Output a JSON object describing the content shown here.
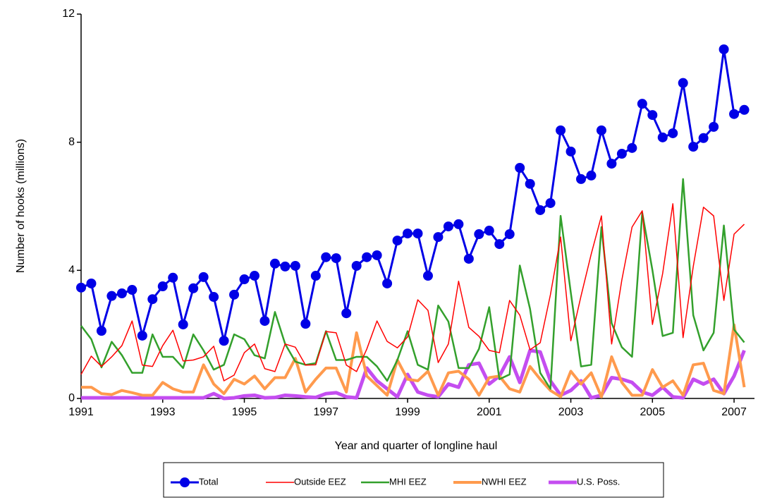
{
  "chart_data": {
    "type": "line",
    "x_label": "Year and quarter of longline haul",
    "y_label": "Number of hooks (millions)",
    "x": [
      1991,
      1991.25,
      1991.5,
      1991.75,
      1992,
      1992.25,
      1992.5,
      1992.75,
      1993,
      1993.25,
      1993.5,
      1993.75,
      1994,
      1994.25,
      1994.5,
      1994.75,
      1995,
      1995.25,
      1995.5,
      1995.75,
      1996,
      1996.25,
      1996.5,
      1996.75,
      1997,
      1997.25,
      1997.5,
      1997.75,
      1998,
      1998.25,
      1998.5,
      1998.75,
      1999,
      1999.25,
      1999.5,
      1999.75,
      2000,
      2000.25,
      2000.5,
      2000.75,
      2001,
      2001.25,
      2001.5,
      2001.75,
      2002,
      2002.25,
      2002.5,
      2002.75,
      2003,
      2003.25,
      2003.5,
      2003.75,
      2004,
      2004.25,
      2004.5,
      2004.75,
      2005,
      2005.25,
      2005.5,
      2005.75,
      2006,
      2006.25,
      2006.5,
      2006.75,
      2007,
      2007.25
    ],
    "xlim": [
      1991,
      2007.5
    ],
    "xticks": [
      1991,
      1993,
      1995,
      1997,
      1999,
      2001,
      2003,
      2005,
      2007
    ],
    "ylim": [
      0,
      12
    ],
    "yticks": [
      0,
      4,
      8,
      12
    ],
    "legend": "bottom",
    "series": [
      {
        "name": "Total",
        "color": "#0000e6",
        "marker": "circle",
        "values": [
          3.46,
          3.59,
          2.11,
          3.2,
          3.28,
          3.39,
          1.96,
          3.1,
          3.5,
          3.77,
          2.31,
          3.44,
          3.79,
          3.17,
          1.8,
          3.24,
          3.72,
          3.83,
          2.42,
          4.21,
          4.12,
          4.14,
          2.33,
          3.83,
          4.41,
          4.38,
          2.66,
          4.14,
          4.41,
          4.47,
          3.59,
          4.93,
          5.15,
          5.15,
          3.83,
          5.04,
          5.37,
          5.44,
          4.36,
          5.13,
          5.24,
          4.82,
          5.13,
          7.2,
          6.7,
          5.88,
          6.1,
          8.37,
          7.71,
          6.85,
          6.96,
          8.37,
          7.33,
          7.64,
          7.82,
          9.2,
          8.85,
          8.15,
          8.28,
          9.85,
          7.86,
          8.13,
          8.48,
          10.9,
          8.88,
          9.01
        ]
      },
      {
        "name": "Outside EEZ",
        "color": "#ff0000",
        "values": [
          0.75,
          1.32,
          1.0,
          1.3,
          1.65,
          2.42,
          1.04,
          1.0,
          1.65,
          2.13,
          1.17,
          1.2,
          1.3,
          1.63,
          0.55,
          0.73,
          1.43,
          1.7,
          0.93,
          0.84,
          1.7,
          1.6,
          1.04,
          1.05,
          2.09,
          2.05,
          1.04,
          0.84,
          1.54,
          2.42,
          1.78,
          1.58,
          1.92,
          3.08,
          2.75,
          1.12,
          1.7,
          3.66,
          2.22,
          1.94,
          1.5,
          1.43,
          3.06,
          2.6,
          1.52,
          1.74,
          3.24,
          5.04,
          1.8,
          3.2,
          4.51,
          5.7,
          1.7,
          3.7,
          5.35,
          5.86,
          2.31,
          3.9,
          6.08,
          1.9,
          4.12,
          5.97,
          5.7,
          3.06,
          5.13,
          5.44
        ]
      },
      {
        "name": "MHI EEZ",
        "color": "#33a02c",
        "values": [
          2.27,
          1.85,
          0.97,
          1.77,
          1.35,
          0.8,
          0.8,
          2.0,
          1.3,
          1.3,
          0.95,
          2.0,
          1.5,
          0.9,
          1.05,
          2.0,
          1.85,
          1.35,
          1.25,
          2.7,
          1.7,
          1.15,
          1.05,
          1.1,
          2.1,
          1.2,
          1.2,
          1.3,
          1.3,
          1.0,
          0.55,
          1.2,
          2.1,
          1.05,
          0.9,
          2.9,
          2.4,
          0.95,
          0.95,
          1.55,
          2.85,
          0.6,
          0.75,
          4.15,
          2.8,
          0.8,
          0.3,
          5.7,
          3.3,
          1.0,
          1.05,
          5.35,
          2.35,
          1.6,
          1.3,
          5.8,
          4.0,
          1.95,
          2.05,
          6.85,
          2.6,
          1.5,
          2.05,
          5.4,
          2.15,
          1.75
        ]
      },
      {
        "name": "NWHI EEZ",
        "color": "#ff9a4d",
        "values": [
          0.35,
          0.35,
          0.15,
          0.12,
          0.25,
          0.18,
          0.1,
          0.1,
          0.5,
          0.3,
          0.2,
          0.2,
          1.05,
          0.45,
          0.15,
          0.6,
          0.45,
          0.7,
          0.3,
          0.65,
          0.65,
          1.25,
          0.2,
          0.6,
          0.95,
          0.95,
          0.2,
          2.05,
          0.7,
          0.4,
          0.1,
          1.2,
          0.6,
          0.55,
          0.85,
          0.1,
          0.8,
          0.85,
          0.6,
          0.1,
          0.65,
          0.7,
          0.3,
          0.2,
          1.0,
          0.6,
          0.25,
          0.05,
          0.85,
          0.45,
          0.8,
          0.05,
          1.3,
          0.5,
          0.1,
          0.1,
          0.9,
          0.35,
          0.55,
          0.1,
          1.05,
          1.1,
          0.25,
          0.15,
          2.3,
          0.35
        ]
      },
      {
        "name": "U.S. Poss.",
        "color": "#c44df0",
        "values": [
          0.02,
          0.02,
          0.02,
          0.02,
          0.02,
          0.02,
          0.02,
          0.02,
          0.02,
          0.02,
          0.02,
          0.02,
          0.02,
          0.15,
          0,
          0.02,
          0.08,
          0.1,
          0.02,
          0.03,
          0.1,
          0.08,
          0.05,
          0.03,
          0.15,
          0.18,
          0.05,
          0.02,
          0.95,
          0.55,
          0.3,
          0.05,
          0.75,
          0.2,
          0.1,
          0.05,
          0.45,
          0.35,
          1.05,
          1.1,
          0.45,
          0.7,
          1.3,
          0.5,
          1.5,
          1.45,
          0.55,
          0.1,
          0.25,
          0.55,
          0.02,
          0.1,
          0.65,
          0.6,
          0.5,
          0.2,
          0.1,
          0.35,
          0.05,
          0.02,
          0.6,
          0.45,
          0.6,
          0.15,
          0.7,
          1.5
        ]
      }
    ]
  }
}
